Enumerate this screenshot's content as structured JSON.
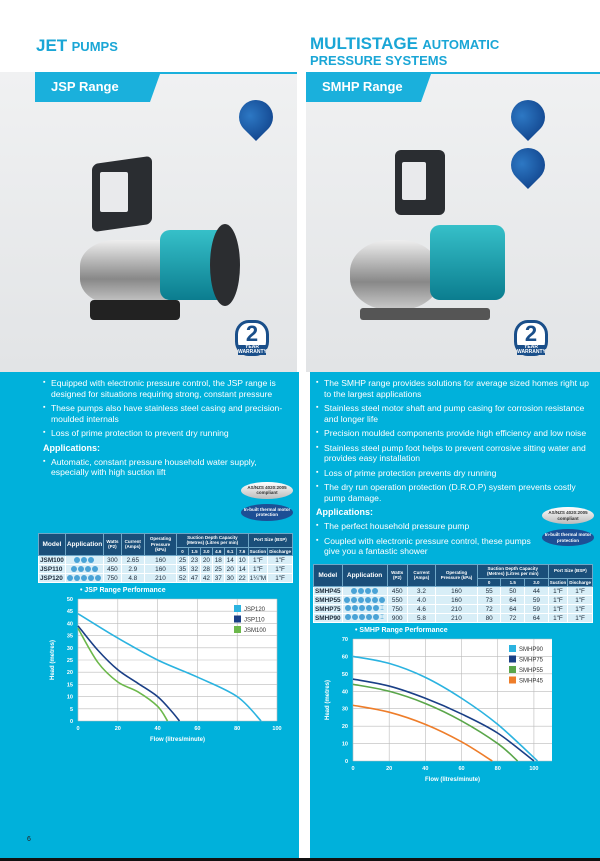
{
  "left": {
    "title_bold": "JET",
    "title_rest": "PUMPS",
    "range_tab": "JSP Range",
    "bullets": [
      "Equipped with electronic pressure control, the JSP range is designed for situations requiring strong, constant pressure",
      "These pumps also have stainless steel casing and precision-moulded internals",
      "Loss of prime protection to prevent dry running"
    ],
    "applications_heading": "Applications:",
    "applications": [
      "Automatic, constant pressure household water supply, especially with high suction lift"
    ],
    "badge_compliance": "AS/NZS 4020:2005 compliant",
    "badge_thermal": "In-built thermal motor protection",
    "warranty_number": "2",
    "warranty_text": "YEAR WARRANTY",
    "table": {
      "headers": {
        "model": "Model",
        "application": "Application",
        "watts": "Watts (P2)",
        "current": "Current (Amps)",
        "pressure": "Operating Pressure (kPa)",
        "suction": "Suction Depth Capacity",
        "metres": "(Metres) (Litres per min)",
        "port": "Port Size (BSP)",
        "port_suction": "Suction",
        "port_discharge": "Discharge"
      },
      "depths": [
        "0",
        "1.5",
        "3.0",
        "4.6",
        "6.1",
        "7.6"
      ],
      "rows": [
        {
          "model": "JSM100",
          "app_icons": 3,
          "tap": false,
          "watts": "300",
          "amps": "2.65",
          "kpa": "160",
          "flows": [
            "25",
            "23",
            "20",
            "18",
            "14",
            "10"
          ],
          "suction": "1\"F",
          "discharge": "1\"F"
        },
        {
          "model": "JSP110",
          "app_icons": 4,
          "tap": false,
          "watts": "450",
          "amps": "2.9",
          "kpa": "160",
          "flows": [
            "35",
            "32",
            "28",
            "25",
            "20",
            "14"
          ],
          "suction": "1\"F",
          "discharge": "1\"F"
        },
        {
          "model": "JSP120",
          "app_icons": 5,
          "tap": false,
          "watts": "750",
          "amps": "4.8",
          "kpa": "210",
          "flows": [
            "52",
            "47",
            "42",
            "37",
            "30",
            "22"
          ],
          "suction": "1¼\"M",
          "discharge": "1\"F"
        }
      ]
    },
    "page_number": "6"
  },
  "right": {
    "title_bold": "MULTISTAGE",
    "title_rest": "AUTOMATIC",
    "title_line2": "PRESSURE SYSTEMS",
    "range_tab": "SMHP Range",
    "bullets": [
      "The SMHP range provides solutions for average sized homes right up to the largest applications",
      "Stainless steel motor shaft and pump casing for corrosion resistance and longer life",
      "Precision moulded components provide high efficiency and low noise",
      "Stainless steel pump foot helps to prevent corrosive sitting water and provides easy installation",
      "Loss of prime protection prevents dry running",
      "The dry run operation protection (D.R.O.P) system prevents costly pump damage."
    ],
    "applications_heading": "Applications:",
    "applications": [
      "The perfect household pressure pump",
      "Coupled with electronic pressure control, these pumps give you a fantastic shower"
    ],
    "badge_compliance": "AS/NZS 4020:2005 compliant",
    "badge_thermal": "In-built thermal motor protection",
    "warranty_number": "2",
    "warranty_text": "YEAR WARRANTY",
    "table": {
      "headers": {
        "model": "Model",
        "application": "Application",
        "watts": "Watts (P2)",
        "current": "Current (Amps)",
        "pressure": "Operating Pressure (kPa)",
        "suction": "Suction Depth Capacity",
        "metres": "(Metres) (Litres per min)",
        "port": "Port Size (BSP)",
        "port_suction": "Suction",
        "port_discharge": "Discharge"
      },
      "depths": [
        "0",
        "1.5",
        "3.0"
      ],
      "rows": [
        {
          "model": "SMHP45",
          "app_icons": 4,
          "tap": false,
          "watts": "450",
          "amps": "3.2",
          "kpa": "160",
          "flows": [
            "55",
            "50",
            "44"
          ],
          "suction": "1\"F",
          "discharge": "1\"F"
        },
        {
          "model": "SMHP55",
          "app_icons": 6,
          "tap": false,
          "watts": "550",
          "amps": "4.0",
          "kpa": "160",
          "flows": [
            "73",
            "64",
            "59"
          ],
          "suction": "1\"F",
          "discharge": "1\"F"
        },
        {
          "model": "SMHP75",
          "app_icons": 5,
          "tap": true,
          "watts": "750",
          "amps": "4.6",
          "kpa": "210",
          "flows": [
            "72",
            "64",
            "59"
          ],
          "suction": "1\"F",
          "discharge": "1\"F"
        },
        {
          "model": "SMHP90",
          "app_icons": 5,
          "tap": true,
          "watts": "900",
          "amps": "5.8",
          "kpa": "210",
          "flows": [
            "80",
            "72",
            "64"
          ],
          "suction": "1\"F",
          "discharge": "1\"F"
        }
      ]
    }
  },
  "chart_data": [
    {
      "type": "line",
      "title": "JSP Range Performance",
      "xlabel": "Flow (litres/minute)",
      "ylabel": "Head (metres)",
      "xlim": [
        0,
        100
      ],
      "ylim": [
        0,
        50
      ],
      "xticks": [
        0,
        20,
        40,
        60,
        80,
        100
      ],
      "yticks": [
        0,
        5,
        10,
        15,
        20,
        25,
        30,
        35,
        40,
        45,
        50
      ],
      "grid": true,
      "legend": "top-right",
      "series": [
        {
          "name": "JSP120",
          "color": "#2bb3e0",
          "x": [
            0,
            20,
            40,
            60,
            80,
            92
          ],
          "y": [
            44,
            34,
            25,
            18,
            10,
            0
          ]
        },
        {
          "name": "JSP110",
          "color": "#1a3f86",
          "x": [
            0,
            10,
            20,
            30,
            40,
            47,
            51
          ],
          "y": [
            39,
            29,
            21,
            15.5,
            10,
            4,
            0
          ]
        },
        {
          "name": "JSM100",
          "color": "#6cb84b",
          "x": [
            0,
            10,
            20,
            30,
            40,
            45
          ],
          "y": [
            38,
            24,
            16,
            12,
            6,
            0
          ]
        }
      ]
    },
    {
      "type": "line",
      "title": "SMHP Range Performance",
      "xlabel": "Flow (litres/minute)",
      "ylabel": "Head (metres)",
      "xlim": [
        0,
        110
      ],
      "ylim": [
        0,
        70
      ],
      "xticks": [
        0,
        20,
        40,
        60,
        80,
        100
      ],
      "yticks": [
        0,
        10,
        20,
        30,
        40,
        50,
        60,
        70
      ],
      "grid": true,
      "legend": "top-right",
      "series": [
        {
          "name": "SMHP90",
          "color": "#2bb3e0",
          "x": [
            0,
            20,
            40,
            60,
            80,
            102
          ],
          "y": [
            60,
            56,
            48,
            36,
            21,
            0
          ]
        },
        {
          "name": "SMHP75",
          "color": "#1a3f86",
          "x": [
            0,
            20,
            40,
            60,
            80,
            100
          ],
          "y": [
            47,
            43,
            36,
            27,
            16,
            0
          ]
        },
        {
          "name": "SMHP55",
          "color": "#5aa64a",
          "x": [
            0,
            20,
            40,
            60,
            80,
            91
          ],
          "y": [
            44,
            40,
            33,
            23,
            10,
            0
          ]
        },
        {
          "name": "SMHP45",
          "color": "#ee7d2a",
          "x": [
            0,
            20,
            40,
            60,
            77
          ],
          "y": [
            32,
            28,
            21,
            11,
            0
          ]
        }
      ]
    }
  ]
}
